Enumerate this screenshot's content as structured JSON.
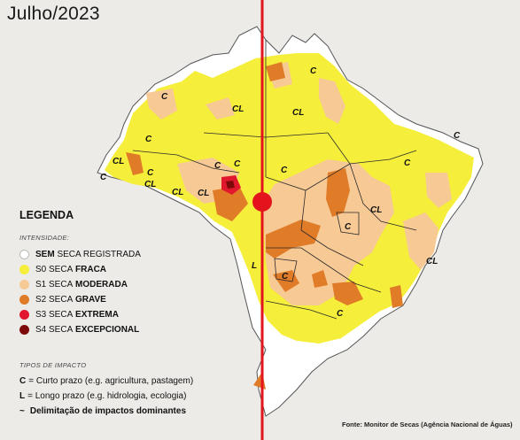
{
  "title": "Julho/2023",
  "colors": {
    "none": "#ffffff",
    "s0": "#f5ee3a",
    "s1": "#f7c995",
    "s2": "#e07b27",
    "s3": "#e1172d",
    "s4": "#7c0a0a",
    "marker": "#e3141c",
    "border": "#2a2a2a"
  },
  "legend": {
    "heading": "LEGENDA",
    "intensity_label": "INTENSIDADE:",
    "items": [
      {
        "code": "SEM",
        "rest": "SECA REGISTRADA",
        "key": "none"
      },
      {
        "code": "S0 SECA",
        "rest": "FRACA",
        "key": "s0"
      },
      {
        "code": "S1 SECA",
        "rest": "MODERADA",
        "key": "s1"
      },
      {
        "code": "S2 SECA",
        "rest": "GRAVE",
        "key": "s2"
      },
      {
        "code": "S3 SECA",
        "rest": "EXTREMA",
        "key": "s3"
      },
      {
        "code": "S4 SECA",
        "rest": "EXCEPCIONAL",
        "key": "s4"
      }
    ]
  },
  "impact": {
    "label": "TIPOS DE IMPACTO",
    "c_key": "C",
    "c_text": "= Curto prazo (e.g. agricultura, pastagem)",
    "l_key": "L",
    "l_text": "= Longo prazo (e.g. hidrologia, ecologia)",
    "line_symbol": "~",
    "line_text": "Delimitação de impactos dominantes"
  },
  "map_labels": [
    "C",
    "CL",
    "C",
    "C",
    "CL",
    "C",
    "C",
    "CL",
    "CL",
    "CL",
    "C",
    "C",
    "C",
    "CL",
    "C",
    "C",
    "L",
    "C",
    "C",
    "CL",
    "C",
    "CL"
  ],
  "source": "Fonte: Monitor de Secas (Agência Nacional de Águas)"
}
